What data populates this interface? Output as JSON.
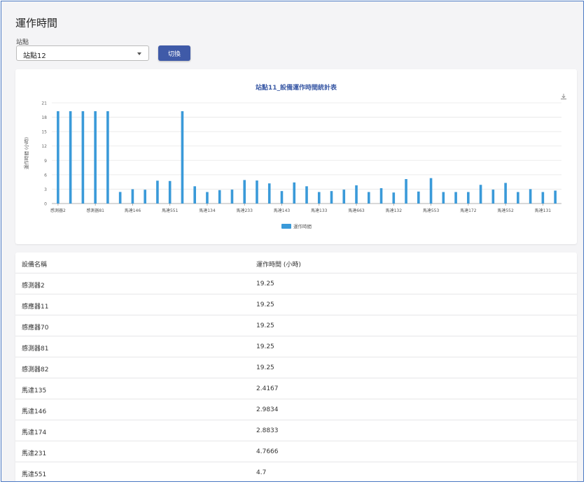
{
  "page": {
    "title": "運作時間"
  },
  "station_select": {
    "label": "站點",
    "value": "站點12"
  },
  "switch_button": {
    "label": "切換"
  },
  "chart_data": {
    "type": "bar",
    "title": "站點11_設備運作時間統計表",
    "ylabel": "運作時間 (小時)",
    "xlabel": "",
    "ylim": [
      0,
      21
    ],
    "yticks": [
      0,
      3,
      6,
      9,
      12,
      15,
      18,
      21
    ],
    "grid": true,
    "legend_position": "bottom",
    "tick_labels": [
      "感測器2",
      "感測器81",
      "馬達146",
      "馬達551",
      "馬達134",
      "馬達233",
      "馬達143",
      "馬達133",
      "馬達663",
      "馬達132",
      "馬達553",
      "馬達172",
      "馬達552",
      "馬達131"
    ],
    "series": [
      {
        "name": "運作時間",
        "color": "#3a9ad9",
        "values": [
          19.25,
          19.25,
          19.25,
          19.25,
          19.25,
          2.4167,
          2.9834,
          2.8833,
          4.7666,
          4.7,
          19.25,
          3.6,
          2.4,
          2.8,
          2.9,
          4.9,
          4.8,
          4.2,
          2.6,
          4.4,
          3.6,
          2.4,
          2.6,
          2.9,
          3.8,
          2.4,
          3.2,
          2.3,
          5.1,
          2.5,
          5.3,
          2.4,
          2.4,
          2.4,
          3.9,
          2.9,
          4.3,
          2.4,
          3.0,
          2.4,
          2.7
        ]
      }
    ]
  },
  "table": {
    "headers": [
      "設備名稱",
      "運作時間 (小時)"
    ],
    "rows": [
      [
        "感測器2",
        "19.25"
      ],
      [
        "感應器11",
        "19.25"
      ],
      [
        "感應器70",
        "19.25"
      ],
      [
        "感測器81",
        "19.25"
      ],
      [
        "感測器82",
        "19.25"
      ],
      [
        "馬達135",
        "2.4167"
      ],
      [
        "馬達146",
        "2.9834"
      ],
      [
        "馬達174",
        "2.8833"
      ],
      [
        "馬達231",
        "4.7666"
      ],
      [
        "馬達551",
        "4.7"
      ]
    ]
  },
  "colors": {
    "accent": "#3f5aa8",
    "bar": "#3a9ad9",
    "title": "#3b5aa6"
  }
}
